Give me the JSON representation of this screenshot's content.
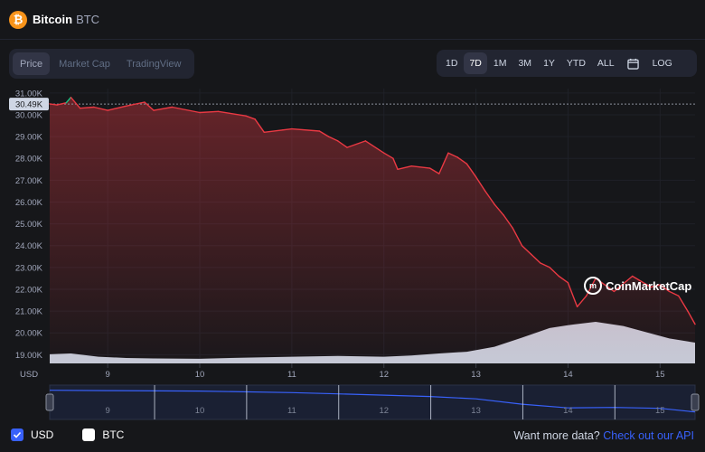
{
  "header": {
    "coin_icon_glyph": "₿",
    "coin_name": "Bitcoin",
    "coin_symbol": "BTC"
  },
  "tabs": [
    "Price",
    "Market Cap",
    "TradingView"
  ],
  "active_tab": "Price",
  "ranges": [
    "1D",
    "7D",
    "1M",
    "3M",
    "1Y",
    "YTD",
    "ALL"
  ],
  "active_range": "7D",
  "log_label": "LOG",
  "legend": {
    "usd_label": "USD",
    "btc_label": "BTC"
  },
  "api": {
    "prefix": "Want more data?",
    "link": "Check out our API"
  },
  "watermark": "CoinMarketCap",
  "colors": {
    "up": "#16c784",
    "down": "#ea3943",
    "volume": "#cfd6e4",
    "nav_line": "#3861fb",
    "accent": "#3861fb"
  },
  "chart_data": {
    "type": "line",
    "title": "Bitcoin BTC Price",
    "ylabel": "USD",
    "ylim": [
      18600,
      31200
    ],
    "yticks": [
      31000,
      30000,
      29000,
      28000,
      27000,
      26000,
      25000,
      24000,
      23000,
      22000,
      21000,
      20000,
      19000
    ],
    "ytick_labels": [
      "31.00K",
      "30.00K",
      "29.00K",
      "28.00K",
      "27.00K",
      "26.00K",
      "25.00K",
      "24.00K",
      "23.00K",
      "22.00K",
      "21.00K",
      "20.00K",
      "19.00K"
    ],
    "xlim": [
      8.37,
      15.38
    ],
    "xticks": [
      9,
      10,
      11,
      12,
      13,
      14,
      15
    ],
    "xtick_labels": [
      "9",
      "10",
      "11",
      "12",
      "13",
      "14",
      "15"
    ],
    "current_price": 30490,
    "current_price_label": "30.49K",
    "series": [
      {
        "name": "Price",
        "x": [
          8.37,
          8.45,
          8.55,
          8.6,
          8.7,
          8.85,
          9.0,
          9.2,
          9.4,
          9.5,
          9.7,
          10.0,
          10.2,
          10.5,
          10.6,
          10.7,
          10.9,
          11.0,
          11.3,
          11.4,
          11.5,
          11.6,
          11.8,
          12.0,
          12.1,
          12.15,
          12.3,
          12.5,
          12.6,
          12.7,
          12.8,
          12.9,
          13.0,
          13.1,
          13.2,
          13.3,
          13.4,
          13.5,
          13.6,
          13.7,
          13.8,
          13.9,
          14.0,
          14.1,
          14.2,
          14.3,
          14.4,
          14.5,
          14.7,
          14.9,
          15.0,
          15.1,
          15.2,
          15.3,
          15.38
        ],
        "values": [
          30500,
          30450,
          30550,
          30800,
          30300,
          30350,
          30200,
          30400,
          30580,
          30200,
          30350,
          30100,
          30150,
          29950,
          29800,
          29200,
          29300,
          29350,
          29250,
          29000,
          28800,
          28500,
          28800,
          28250,
          28000,
          27500,
          27650,
          27550,
          27300,
          28250,
          28050,
          27750,
          27150,
          26500,
          25900,
          25400,
          24800,
          24000,
          23600,
          23200,
          23000,
          22600,
          22300,
          21200,
          21700,
          22500,
          22200,
          21900,
          22600,
          22100,
          22200,
          21900,
          21700,
          21000,
          20400
        ]
      },
      {
        "name": "Volume",
        "x": [
          8.37,
          8.6,
          8.9,
          9.2,
          9.5,
          10.0,
          10.5,
          11.0,
          11.5,
          12.0,
          12.3,
          12.6,
          12.9,
          13.2,
          13.5,
          13.8,
          14.0,
          14.3,
          14.6,
          14.9,
          15.1,
          15.38
        ],
        "values": [
          0.22,
          0.24,
          0.16,
          0.13,
          0.12,
          0.11,
          0.14,
          0.16,
          0.18,
          0.16,
          0.19,
          0.24,
          0.28,
          0.4,
          0.62,
          0.85,
          0.92,
          1.0,
          0.9,
          0.72,
          0.6,
          0.5
        ]
      }
    ],
    "navigator": {
      "x": [
        8.37,
        9.0,
        10.0,
        11.0,
        11.5,
        12.0,
        12.5,
        13.0,
        13.5,
        14.0,
        14.5,
        15.0,
        15.38
      ],
      "values": [
        30500,
        30300,
        30100,
        29400,
        28800,
        28200,
        27600,
        26500,
        24000,
        22300,
        22500,
        22100,
        20400
      ],
      "tick_labels": [
        "9",
        "10",
        "11",
        "12",
        "13",
        "14",
        "15"
      ]
    }
  }
}
